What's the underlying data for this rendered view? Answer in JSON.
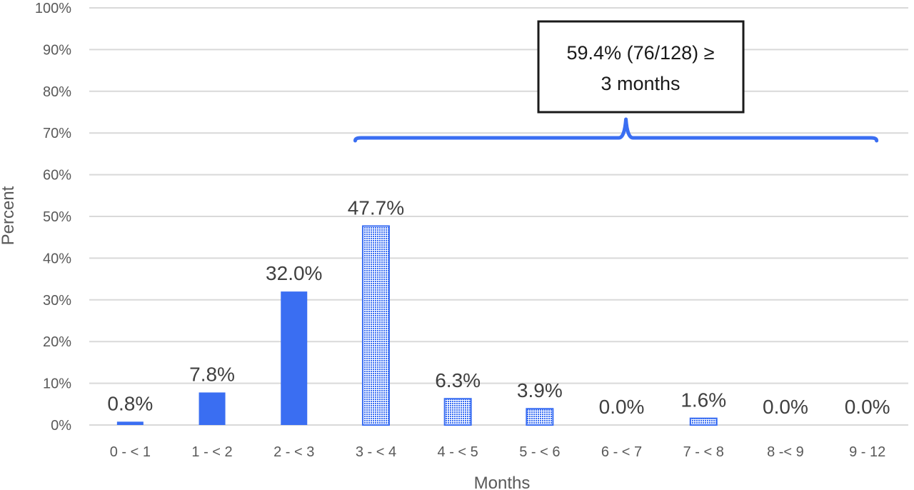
{
  "chart_data": {
    "type": "bar",
    "title": "",
    "xlabel": "Months",
    "ylabel": "Percent",
    "ylim": [
      0,
      100
    ],
    "ytick_values": [
      0,
      10,
      20,
      30,
      40,
      50,
      60,
      70,
      80,
      90,
      100
    ],
    "ytick_labels": [
      "0%",
      "10%",
      "20%",
      "30%",
      "40%",
      "50%",
      "60%",
      "70%",
      "80%",
      "90%",
      "100%"
    ],
    "categories": [
      "0 - < 1",
      "1 - < 2",
      "2 - < 3",
      "3 - < 4",
      "4 - < 5",
      "5 - < 6",
      "6 - < 7",
      "7 - < 8",
      "8  -< 9",
      "9 - 12"
    ],
    "values": [
      0.8,
      7.8,
      32.0,
      47.7,
      6.3,
      3.9,
      0.0,
      1.6,
      0.0,
      0.0
    ],
    "data_labels": [
      "0.8%",
      "7.8%",
      "32.0%",
      "47.7%",
      "6.3%",
      "3.9%",
      "0.0%",
      "1.6%",
      "0.0%",
      "0.0%"
    ],
    "bar_styles": [
      "solid",
      "solid",
      "solid",
      "dotted",
      "dotted",
      "dotted",
      "dotted",
      "dotted",
      "dotted",
      "dotted"
    ],
    "grid": true,
    "legend": "none",
    "colors": {
      "bar": "#3a6ef2",
      "grid": "#d9d9d9",
      "brace": "#3a6ef2",
      "text": "#595959"
    },
    "annotation": {
      "lines": [
        "59.4% (76/128) ≥",
        "3 months"
      ],
      "brace_from_category": 3,
      "brace_to_category": 9
    }
  }
}
